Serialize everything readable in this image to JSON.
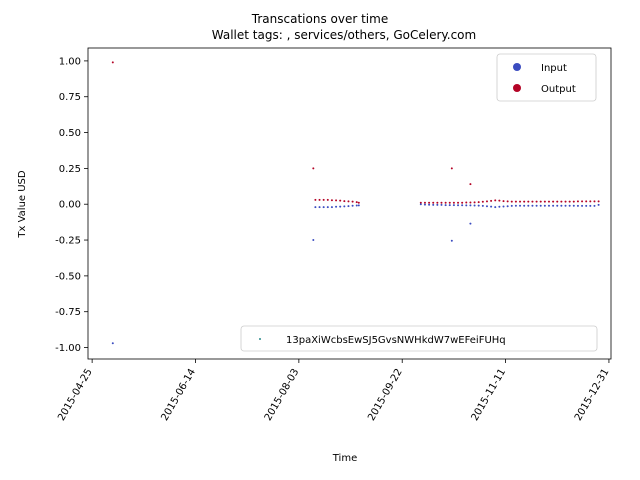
{
  "chart_data": {
    "type": "scatter",
    "title": "Transcations over time",
    "subtitle": "Wallet tags: , services/others, GoCelery.com",
    "xlabel": "Time",
    "ylabel": "Tx Value USD",
    "xlim": [
      "2015-04-23",
      "2016-01-01"
    ],
    "ylim": [
      -1.08,
      1.09
    ],
    "x_ticks": [
      "2015-04-25",
      "2015-06-14",
      "2015-08-03",
      "2015-09-22",
      "2015-11-11",
      "2015-12-31"
    ],
    "y_ticks": [
      1.0,
      0.75,
      0.5,
      0.25,
      0.0,
      -0.25,
      -0.5,
      -0.75,
      -1.0
    ],
    "legend_class": {
      "position": "top-right",
      "entries": [
        "Input",
        "Output"
      ]
    },
    "legend_wallet": {
      "position": "lower-right",
      "entries": [
        "13paXiWcbsEwSJ5GvsNWHkdW7wEFeiFUHq"
      ]
    },
    "colors": {
      "Input": "#3b4cc0",
      "Output": "#b40426",
      "wallet": "#2a8a8a"
    },
    "series": [
      {
        "name": "Output",
        "points": [
          [
            "2015-05-05",
            0.99
          ],
          [
            "2015-08-10",
            0.25
          ],
          [
            "2015-08-11",
            0.03
          ],
          [
            "2015-08-13",
            0.03
          ],
          [
            "2015-08-15",
            0.03
          ],
          [
            "2015-08-17",
            0.03
          ],
          [
            "2015-08-19",
            0.028
          ],
          [
            "2015-08-21",
            0.027
          ],
          [
            "2015-08-23",
            0.025
          ],
          [
            "2015-08-25",
            0.022
          ],
          [
            "2015-08-27",
            0.02
          ],
          [
            "2015-08-29",
            0.018
          ],
          [
            "2015-08-31",
            0.015
          ],
          [
            "2015-09-01",
            0.01
          ],
          [
            "2015-10-01",
            0.01
          ],
          [
            "2015-10-03",
            0.01
          ],
          [
            "2015-10-05",
            0.01
          ],
          [
            "2015-10-07",
            0.01
          ],
          [
            "2015-10-09",
            0.01
          ],
          [
            "2015-10-11",
            0.01
          ],
          [
            "2015-10-13",
            0.01
          ],
          [
            "2015-10-15",
            0.01
          ],
          [
            "2015-10-16",
            0.25
          ],
          [
            "2015-10-17",
            0.01
          ],
          [
            "2015-10-19",
            0.01
          ],
          [
            "2015-10-21",
            0.01
          ],
          [
            "2015-10-23",
            0.012
          ],
          [
            "2015-10-25",
            0.14
          ],
          [
            "2015-10-25",
            0.012
          ],
          [
            "2015-10-27",
            0.013
          ],
          [
            "2015-10-29",
            0.015
          ],
          [
            "2015-10-31",
            0.017
          ],
          [
            "2015-11-02",
            0.02
          ],
          [
            "2015-11-04",
            0.023
          ],
          [
            "2015-11-06",
            0.027
          ],
          [
            "2015-11-08",
            0.025
          ],
          [
            "2015-11-10",
            0.022
          ],
          [
            "2015-11-12",
            0.02
          ],
          [
            "2015-11-14",
            0.018
          ],
          [
            "2015-11-16",
            0.018
          ],
          [
            "2015-11-18",
            0.018
          ],
          [
            "2015-11-20",
            0.018
          ],
          [
            "2015-11-22",
            0.018
          ],
          [
            "2015-11-24",
            0.018
          ],
          [
            "2015-11-26",
            0.018
          ],
          [
            "2015-11-28",
            0.018
          ],
          [
            "2015-11-30",
            0.018
          ],
          [
            "2015-12-02",
            0.018
          ],
          [
            "2015-12-04",
            0.018
          ],
          [
            "2015-12-06",
            0.018
          ],
          [
            "2015-12-08",
            0.018
          ],
          [
            "2015-12-10",
            0.018
          ],
          [
            "2015-12-12",
            0.018
          ],
          [
            "2015-12-14",
            0.018
          ],
          [
            "2015-12-16",
            0.02
          ],
          [
            "2015-12-18",
            0.02
          ],
          [
            "2015-12-20",
            0.02
          ],
          [
            "2015-12-22",
            0.02
          ],
          [
            "2015-12-24",
            0.02
          ],
          [
            "2015-12-26",
            0.02
          ]
        ]
      },
      {
        "name": "Input",
        "points": [
          [
            "2015-05-05",
            -0.97
          ],
          [
            "2015-08-10",
            -0.25
          ],
          [
            "2015-08-11",
            -0.02
          ],
          [
            "2015-08-13",
            -0.02
          ],
          [
            "2015-08-15",
            -0.02
          ],
          [
            "2015-08-17",
            -0.02
          ],
          [
            "2015-08-19",
            -0.02
          ],
          [
            "2015-08-21",
            -0.018
          ],
          [
            "2015-08-23",
            -0.017
          ],
          [
            "2015-08-25",
            -0.015
          ],
          [
            "2015-08-27",
            -0.013
          ],
          [
            "2015-08-29",
            -0.011
          ],
          [
            "2015-08-31",
            -0.009
          ],
          [
            "2015-09-01",
            -0.008
          ],
          [
            "2015-10-01",
            0.0
          ],
          [
            "2015-10-03",
            -0.003
          ],
          [
            "2015-10-05",
            -0.004
          ],
          [
            "2015-10-07",
            -0.005
          ],
          [
            "2015-10-09",
            -0.005
          ],
          [
            "2015-10-11",
            -0.005
          ],
          [
            "2015-10-13",
            -0.006
          ],
          [
            "2015-10-15",
            -0.006
          ],
          [
            "2015-10-16",
            -0.255
          ],
          [
            "2015-10-17",
            -0.006
          ],
          [
            "2015-10-19",
            -0.007
          ],
          [
            "2015-10-21",
            -0.007
          ],
          [
            "2015-10-23",
            -0.008
          ],
          [
            "2015-10-25",
            -0.135
          ],
          [
            "2015-10-25",
            -0.008
          ],
          [
            "2015-10-27",
            -0.009
          ],
          [
            "2015-10-29",
            -0.01
          ],
          [
            "2015-10-31",
            -0.012
          ],
          [
            "2015-11-02",
            -0.014
          ],
          [
            "2015-11-04",
            -0.017
          ],
          [
            "2015-11-06",
            -0.02
          ],
          [
            "2015-11-08",
            -0.018
          ],
          [
            "2015-11-10",
            -0.016
          ],
          [
            "2015-11-12",
            -0.014
          ],
          [
            "2015-11-14",
            -0.012
          ],
          [
            "2015-11-16",
            -0.011
          ],
          [
            "2015-11-18",
            -0.011
          ],
          [
            "2015-11-20",
            -0.011
          ],
          [
            "2015-11-22",
            -0.011
          ],
          [
            "2015-11-24",
            -0.011
          ],
          [
            "2015-11-26",
            -0.011
          ],
          [
            "2015-11-28",
            -0.011
          ],
          [
            "2015-11-30",
            -0.011
          ],
          [
            "2015-12-02",
            -0.011
          ],
          [
            "2015-12-04",
            -0.011
          ],
          [
            "2015-12-06",
            -0.011
          ],
          [
            "2015-12-08",
            -0.011
          ],
          [
            "2015-12-10",
            -0.011
          ],
          [
            "2015-12-12",
            -0.011
          ],
          [
            "2015-12-14",
            -0.011
          ],
          [
            "2015-12-16",
            -0.012
          ],
          [
            "2015-12-18",
            -0.012
          ],
          [
            "2015-12-20",
            -0.012
          ],
          [
            "2015-12-22",
            -0.012
          ],
          [
            "2015-12-24",
            -0.012
          ],
          [
            "2015-12-26",
            -0.005
          ]
        ]
      }
    ]
  }
}
